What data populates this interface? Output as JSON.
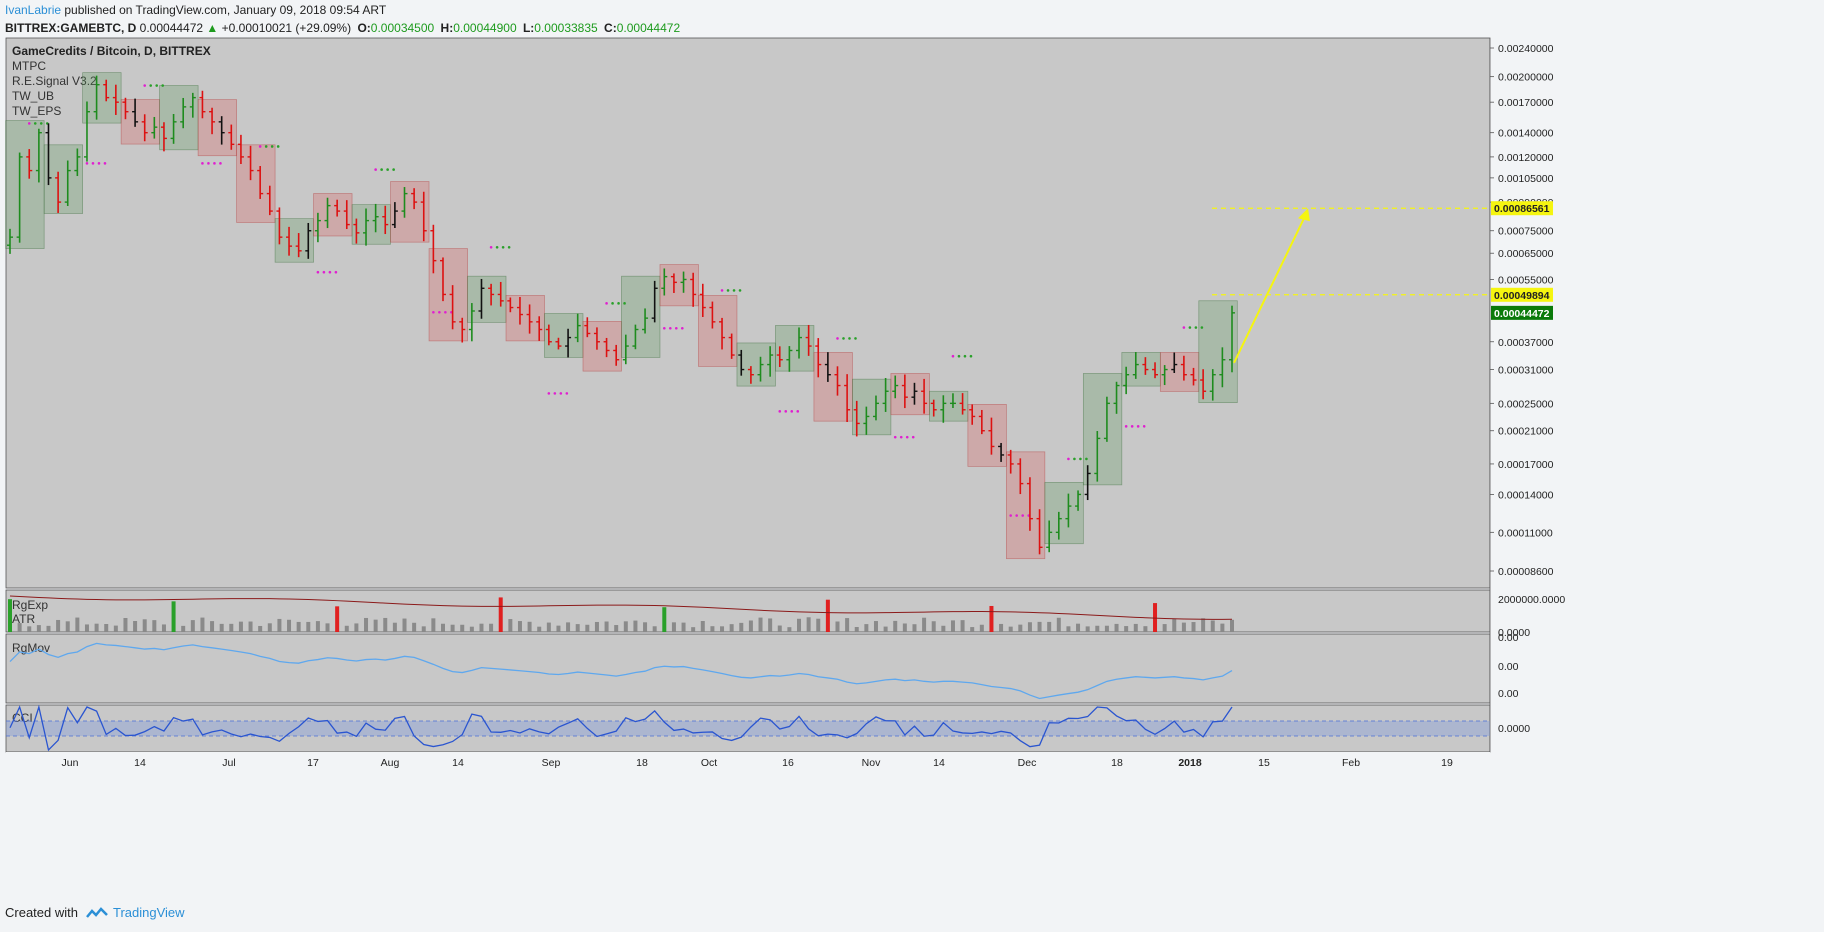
{
  "header": {
    "author": "IvanLabrie",
    "published_text": " published on TradingView.com, January 09, 2018 09:54 ART",
    "symbol": "BITTREX:GAMEBTC, D",
    "last_price": "0.00044472",
    "change_arrow": "▲",
    "change": "+0.00010021 (+29.09%)",
    "open_label": "O:",
    "open": "0.00034500",
    "high_label": "H:",
    "high": "0.00044900",
    "low_label": "L:",
    "low": "0.00033835",
    "close_label": "C:",
    "close": "0.00044472"
  },
  "footer": {
    "created_with": "Created with",
    "brand": "TradingView"
  },
  "colors": {
    "bull": "#1e8c1e",
    "bear": "#dd1111",
    "neutral": "#111111",
    "bg": "#c8c8c8",
    "yellow": "#f5f510",
    "axis_label_green": "#0a7a0a"
  },
  "chart_data": [
    {
      "type": "candlestick",
      "title": "GameCredits / Bitcoin, D, BITTREX",
      "indicators": [
        "MTPC",
        "R.E.Signal V3.2",
        "TW_UB",
        "TW_EPS"
      ],
      "y_ticks": [
        "0.00240000",
        "0.00200000",
        "0.00170000",
        "0.00140000",
        "0.00120000",
        "0.00105000",
        "0.00090000",
        "0.00075000",
        "0.00065000",
        "0.00055000",
        "0.00037000",
        "0.00031000",
        "0.00025000",
        "0.00021000",
        "0.00017000",
        "0.00014000",
        "0.00011000",
        "0.00008600"
      ],
      "x_ticks": [
        "Jun",
        "14",
        "Jul",
        "17",
        "Aug",
        "14",
        "Sep",
        "18",
        "Oct",
        "16",
        "Nov",
        "14",
        "Dec",
        "18",
        "2018",
        "15",
        "Feb",
        "19"
      ],
      "price_labels": [
        {
          "text": "0.00086561",
          "style": "yellow"
        },
        {
          "text": "0.00049894",
          "style": "yellow"
        },
        {
          "text": "0.00044472",
          "style": "green"
        }
      ],
      "target_lines": [
        0.00086561,
        0.00049894
      ],
      "scale": "log",
      "close_series": [
        0.00072,
        0.0012,
        0.0011,
        0.0014,
        0.00105,
        0.0009,
        0.0011,
        0.0012,
        0.0016,
        0.0019,
        0.00175,
        0.0017,
        0.0016,
        0.0015,
        0.0014,
        0.00145,
        0.00135,
        0.0015,
        0.00165,
        0.00175,
        0.0016,
        0.0015,
        0.0014,
        0.0013,
        0.0012,
        0.0011,
        0.00095,
        0.00085,
        0.00072,
        0.00068,
        0.00066,
        0.00075,
        0.0008,
        0.00088,
        0.00085,
        0.00078,
        0.00074,
        0.0008,
        0.00082,
        0.00078,
        0.00085,
        0.00095,
        0.0009,
        0.00075,
        0.00062,
        0.0005,
        0.00042,
        0.0004,
        0.00045,
        0.00052,
        0.0005,
        0.00048,
        0.00046,
        0.00044,
        0.00042,
        0.0004,
        0.00037,
        0.00036,
        0.00038,
        0.00041,
        0.00039,
        0.00037,
        0.00035,
        0.00033,
        0.00036,
        0.0004,
        0.00043,
        0.00052,
        0.00056,
        0.00054,
        0.00055,
        0.0005,
        0.00046,
        0.00042,
        0.00038,
        0.00034,
        0.00031,
        0.0003,
        0.00032,
        0.00034,
        0.00033,
        0.00035,
        0.00038,
        0.00036,
        0.00032,
        0.0003,
        0.00028,
        0.00024,
        0.00022,
        0.00023,
        0.00025,
        0.00027,
        0.00028,
        0.00026,
        0.00027,
        0.00025,
        0.00024,
        0.00025,
        0.00025,
        0.00024,
        0.00023,
        0.00021,
        0.00019,
        0.00018,
        0.00017,
        0.00015,
        0.00012,
        0.0001,
        0.00011,
        0.00012,
        0.00013,
        0.00014,
        0.00016,
        0.0002,
        0.00025,
        0.00028,
        0.0003,
        0.00032,
        0.00031,
        0.0003,
        0.00031,
        0.00032,
        0.0003,
        0.00029,
        0.00027,
        0.0003,
        0.00033,
        0.00044472
      ]
    },
    {
      "type": "bar",
      "indicators": [
        "RgExp",
        "ATR"
      ],
      "y_ticks": [
        "2000000.0000",
        "0.0000"
      ],
      "note": "volume histogram"
    },
    {
      "type": "line",
      "indicators": [
        "RgMov"
      ],
      "y_ticks": [
        "0.00",
        "0.00",
        "0.00"
      ]
    },
    {
      "type": "line",
      "indicators": [
        "CCI"
      ],
      "y_ticks": [
        "0.0000"
      ]
    }
  ]
}
